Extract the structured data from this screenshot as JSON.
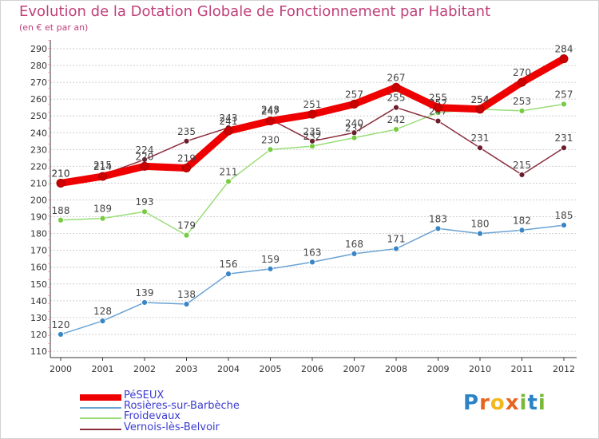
{
  "header": {
    "title": "Evolution de la Dotation Globale de Fonctionnement par Habitant",
    "subtitle": "(en € et par an)"
  },
  "colors": {
    "title": "#c0417a",
    "legend_text": "#3b3bd0",
    "grid": "#cfcfcf",
    "axis": "#333333"
  },
  "chart_data": {
    "type": "line",
    "title": "Evolution de la Dotation Globale de Fonctionnement par Habitant",
    "subtitle": "(en € et par an)",
    "x": [
      "2000",
      "2001",
      "2002",
      "2003",
      "2004",
      "2005",
      "2006",
      "2007",
      "2008",
      "2009",
      "2010",
      "2011",
      "2012"
    ],
    "ylim": [
      110,
      290
    ],
    "yticks": [
      110,
      120,
      130,
      140,
      150,
      160,
      170,
      180,
      190,
      200,
      210,
      220,
      230,
      240,
      250,
      260,
      270,
      280,
      290
    ],
    "grid": "horizontal",
    "legend_position": "bottom-left",
    "series": [
      {
        "name": "PéSEUX",
        "color": "#ee0000",
        "marker": "#cc0000",
        "width": 9,
        "values": [
          210,
          214,
          220,
          219,
          241,
          247,
          251,
          257,
          267,
          255,
          254,
          270,
          284
        ]
      },
      {
        "name": "Rosières-sur-Barbèche",
        "color": "#6aa2d2",
        "marker": "#3a85c6",
        "width": 1.5,
        "values": [
          120,
          128,
          139,
          138,
          156,
          159,
          163,
          168,
          171,
          183,
          180,
          182,
          185
        ]
      },
      {
        "name": "Froidevaux",
        "color": "#99dd77",
        "marker": "#77cc44",
        "width": 1.5,
        "values": [
          188,
          189,
          193,
          179,
          211,
          230,
          232,
          237,
          242,
          252,
          254,
          253,
          257
        ]
      },
      {
        "name": "Vernois-lès-Belvoir",
        "color": "#8b2e3e",
        "marker": "#6b1e2c",
        "width": 1.5,
        "values": [
          210,
          215,
          224,
          235,
          243,
          248,
          235,
          240,
          255,
          247,
          231,
          215,
          231
        ]
      }
    ]
  },
  "logo": {
    "text": "Proxiti",
    "letters": [
      "P",
      "r",
      "o",
      "x",
      "i",
      "t",
      "i"
    ],
    "letter_colors": [
      "#2b83c6",
      "#e8641c",
      "#f2b81c",
      "#e8641c",
      "#7ab83a",
      "#2b83c6",
      "#7ab83a"
    ]
  }
}
